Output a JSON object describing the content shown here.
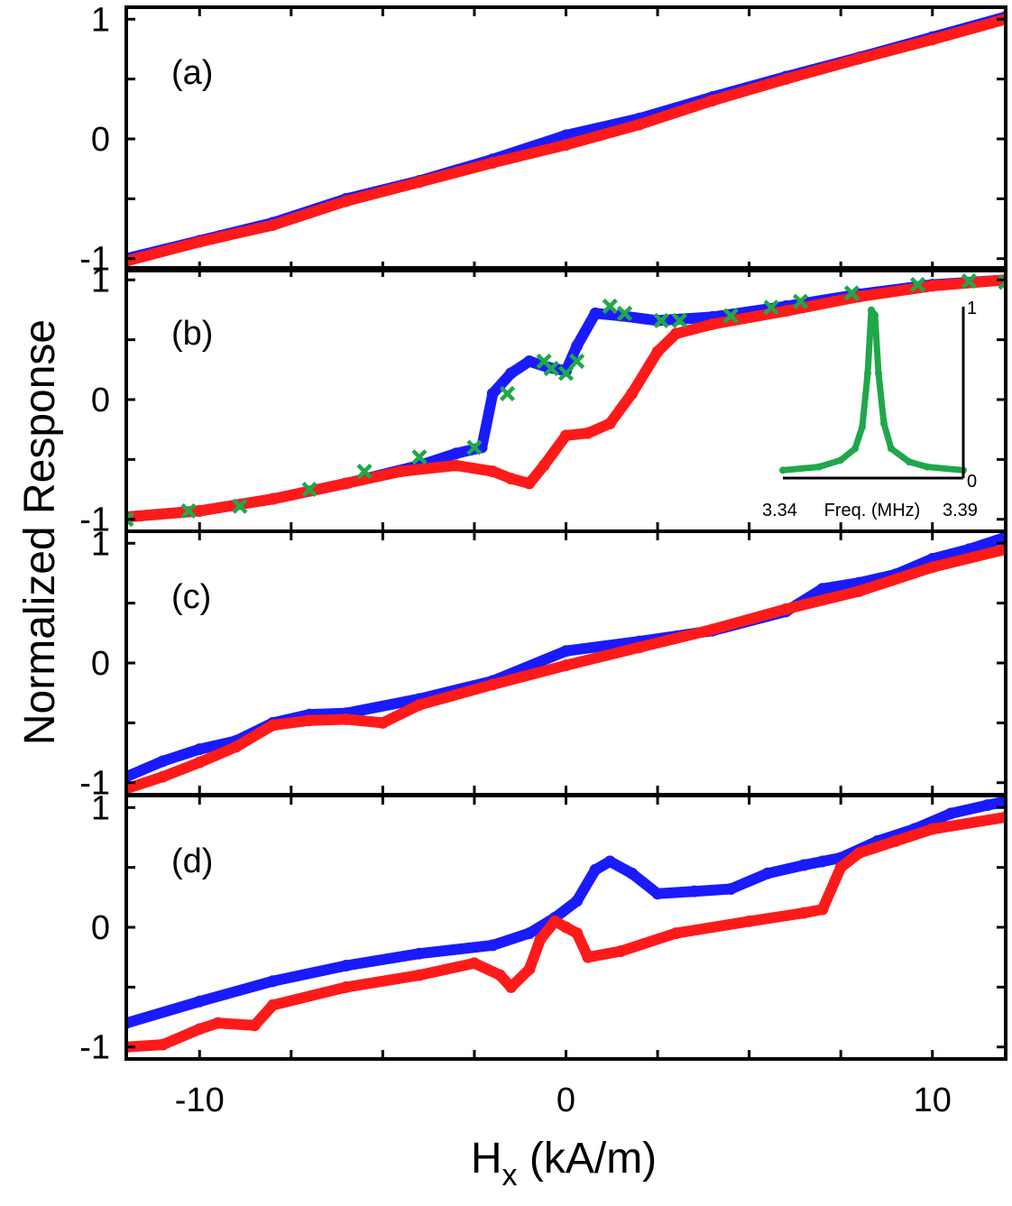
{
  "chart_data": {
    "type": "scatter",
    "xlabel": "H",
    "xlabel_sub": "x",
    "xlabel_units": " (kA/m)",
    "ylabel": "Normalized Response",
    "xlim": [
      -12,
      12
    ],
    "ylim": [
      -1.1,
      1.1
    ],
    "x_ticks": [
      -10,
      0,
      10
    ],
    "x_tick_labels": [
      "-10",
      "0",
      "10"
    ],
    "y_ticks": [
      -1,
      0,
      1
    ],
    "y_tick_labels": [
      "-1",
      "0",
      "1"
    ],
    "colors": {
      "up": "#1a1aff",
      "down": "#ff1a1a",
      "inset": "#1ea84a"
    },
    "panels": [
      {
        "label": "(a)",
        "series": [
          {
            "name": "blue",
            "color": "#1a1aff",
            "x": [
              -12,
              -10,
              -8,
              -6,
              -4,
              -2,
              0,
              2,
              4,
              6,
              8,
              10,
              12
            ],
            "y": [
              -1.0,
              -0.85,
              -0.7,
              -0.5,
              -0.35,
              -0.17,
              0.03,
              0.17,
              0.35,
              0.52,
              0.68,
              0.85,
              1.02
            ]
          },
          {
            "name": "red",
            "color": "#ff1a1a",
            "x": [
              -12,
              -10,
              -8,
              -6,
              -4,
              -2,
              0,
              2,
              4,
              6,
              8,
              10,
              12
            ],
            "y": [
              -1.02,
              -0.86,
              -0.72,
              -0.52,
              -0.36,
              -0.2,
              -0.05,
              0.12,
              0.32,
              0.5,
              0.67,
              0.83,
              1.0
            ]
          }
        ]
      },
      {
        "label": "(b)",
        "series": [
          {
            "name": "blue",
            "color": "#1a1aff",
            "x": [
              -12,
              -10,
              -8,
              -6,
              -4,
              -3,
              -2.3,
              -2.0,
              -1.5,
              -1.0,
              -0.5,
              0,
              0.3,
              0.8,
              1.5,
              2.5,
              4,
              6,
              8,
              10,
              12
            ],
            "y": [
              -0.98,
              -0.93,
              -0.83,
              -0.7,
              -0.55,
              -0.45,
              -0.4,
              0.05,
              0.22,
              0.32,
              0.27,
              0.24,
              0.45,
              0.72,
              0.7,
              0.66,
              0.69,
              0.78,
              0.88,
              0.96,
              1.0
            ]
          },
          {
            "name": "red",
            "color": "#ff1a1a",
            "x": [
              -12,
              -10,
              -8,
              -6,
              -4.5,
              -3,
              -2,
              -1.5,
              -1.0,
              -0.6,
              0,
              0.6,
              1.2,
              1.8,
              2.5,
              3.0,
              4,
              6,
              8,
              10,
              12
            ],
            "y": [
              -0.98,
              -0.93,
              -0.83,
              -0.7,
              -0.6,
              -0.55,
              -0.6,
              -0.66,
              -0.7,
              -0.55,
              -0.3,
              -0.28,
              -0.2,
              0.05,
              0.4,
              0.55,
              0.63,
              0.74,
              0.86,
              0.95,
              1.0
            ]
          },
          {
            "name": "markers",
            "color": "#1ea84a",
            "marker": "x",
            "x": [
              -12,
              -10.3,
              -8.9,
              -7.0,
              -5.5,
              -4.0,
              -2.5,
              -1.6,
              -0.6,
              -0.4,
              0,
              0.3,
              1.2,
              1.6,
              2.6,
              3.1,
              4.5,
              5.6,
              6.4,
              7.8,
              9.6,
              11.0,
              12
            ],
            "y": [
              -1.0,
              -0.93,
              -0.89,
              -0.75,
              -0.6,
              -0.48,
              -0.4,
              0.05,
              0.32,
              0.26,
              0.22,
              0.32,
              0.78,
              0.72,
              0.66,
              0.66,
              0.7,
              0.77,
              0.82,
              0.89,
              0.96,
              0.99,
              0.98
            ]
          }
        ],
        "inset": {
          "xlabel": "Freq. (MHz)",
          "x_tick_labels": [
            "3.34",
            "3.39"
          ],
          "y_tick_labels": [
            "1",
            "0"
          ],
          "x": [
            3.34,
            3.35,
            3.356,
            3.36,
            3.362,
            3.3635,
            3.3645,
            3.3655,
            3.3665,
            3.368,
            3.37,
            3.375,
            3.38,
            3.39
          ],
          "y": [
            0.02,
            0.04,
            0.08,
            0.15,
            0.28,
            0.6,
            0.98,
            0.95,
            0.6,
            0.3,
            0.15,
            0.07,
            0.04,
            0.02
          ]
        }
      },
      {
        "label": "(c)",
        "series": [
          {
            "name": "blue",
            "color": "#1a1aff",
            "x": [
              -12,
              -11,
              -10,
              -9,
              -8,
              -7,
              -6,
              -4,
              -2,
              0,
              2,
              4,
              6,
              7,
              8,
              9,
              10,
              11,
              12
            ],
            "y": [
              -0.95,
              -0.82,
              -0.72,
              -0.65,
              -0.5,
              -0.43,
              -0.42,
              -0.3,
              -0.15,
              0.1,
              0.18,
              0.27,
              0.43,
              0.62,
              0.67,
              0.74,
              0.87,
              0.95,
              1.05
            ]
          },
          {
            "name": "red",
            "color": "#ff1a1a",
            "x": [
              -12,
              -11,
              -10,
              -9,
              -8,
              -7,
              -6,
              -5,
              -4,
              -2,
              0,
              2,
              4,
              6,
              8,
              10,
              12
            ],
            "y": [
              -1.05,
              -0.95,
              -0.83,
              -0.7,
              -0.52,
              -0.48,
              -0.47,
              -0.5,
              -0.35,
              -0.18,
              -0.02,
              0.13,
              0.28,
              0.45,
              0.6,
              0.8,
              0.95
            ]
          }
        ]
      },
      {
        "label": "(d)",
        "series": [
          {
            "name": "blue",
            "color": "#1a1aff",
            "x": [
              -12,
              -10,
              -8,
              -6,
              -4,
              -2,
              -1,
              -0.3,
              0.3,
              0.8,
              1.2,
              1.8,
              2.5,
              3.5,
              4.5,
              5.5,
              6.5,
              7.0,
              7.5,
              8.5,
              9.5,
              10.5,
              11.5,
              12
            ],
            "y": [
              -0.8,
              -0.62,
              -0.45,
              -0.32,
              -0.22,
              -0.15,
              -0.05,
              0.08,
              0.22,
              0.48,
              0.55,
              0.45,
              0.28,
              0.3,
              0.32,
              0.45,
              0.52,
              0.55,
              0.58,
              0.72,
              0.82,
              0.95,
              1.02,
              1.05
            ]
          },
          {
            "name": "red",
            "color": "#ff1a1a",
            "x": [
              -12,
              -11,
              -10,
              -9.5,
              -8.5,
              -8,
              -6,
              -4,
              -2.5,
              -1.8,
              -1.5,
              -1.0,
              -0.7,
              -0.3,
              0,
              0.3,
              0.6,
              1.5,
              3,
              5,
              6.5,
              7.0,
              7.5,
              8,
              9,
              10,
              12
            ],
            "y": [
              -1.0,
              -0.98,
              -0.85,
              -0.8,
              -0.82,
              -0.65,
              -0.5,
              -0.4,
              -0.3,
              -0.4,
              -0.5,
              -0.35,
              -0.1,
              0.05,
              0.0,
              -0.05,
              -0.25,
              -0.2,
              -0.05,
              0.05,
              0.12,
              0.15,
              0.5,
              0.62,
              0.72,
              0.82,
              0.92
            ]
          }
        ]
      }
    ]
  }
}
